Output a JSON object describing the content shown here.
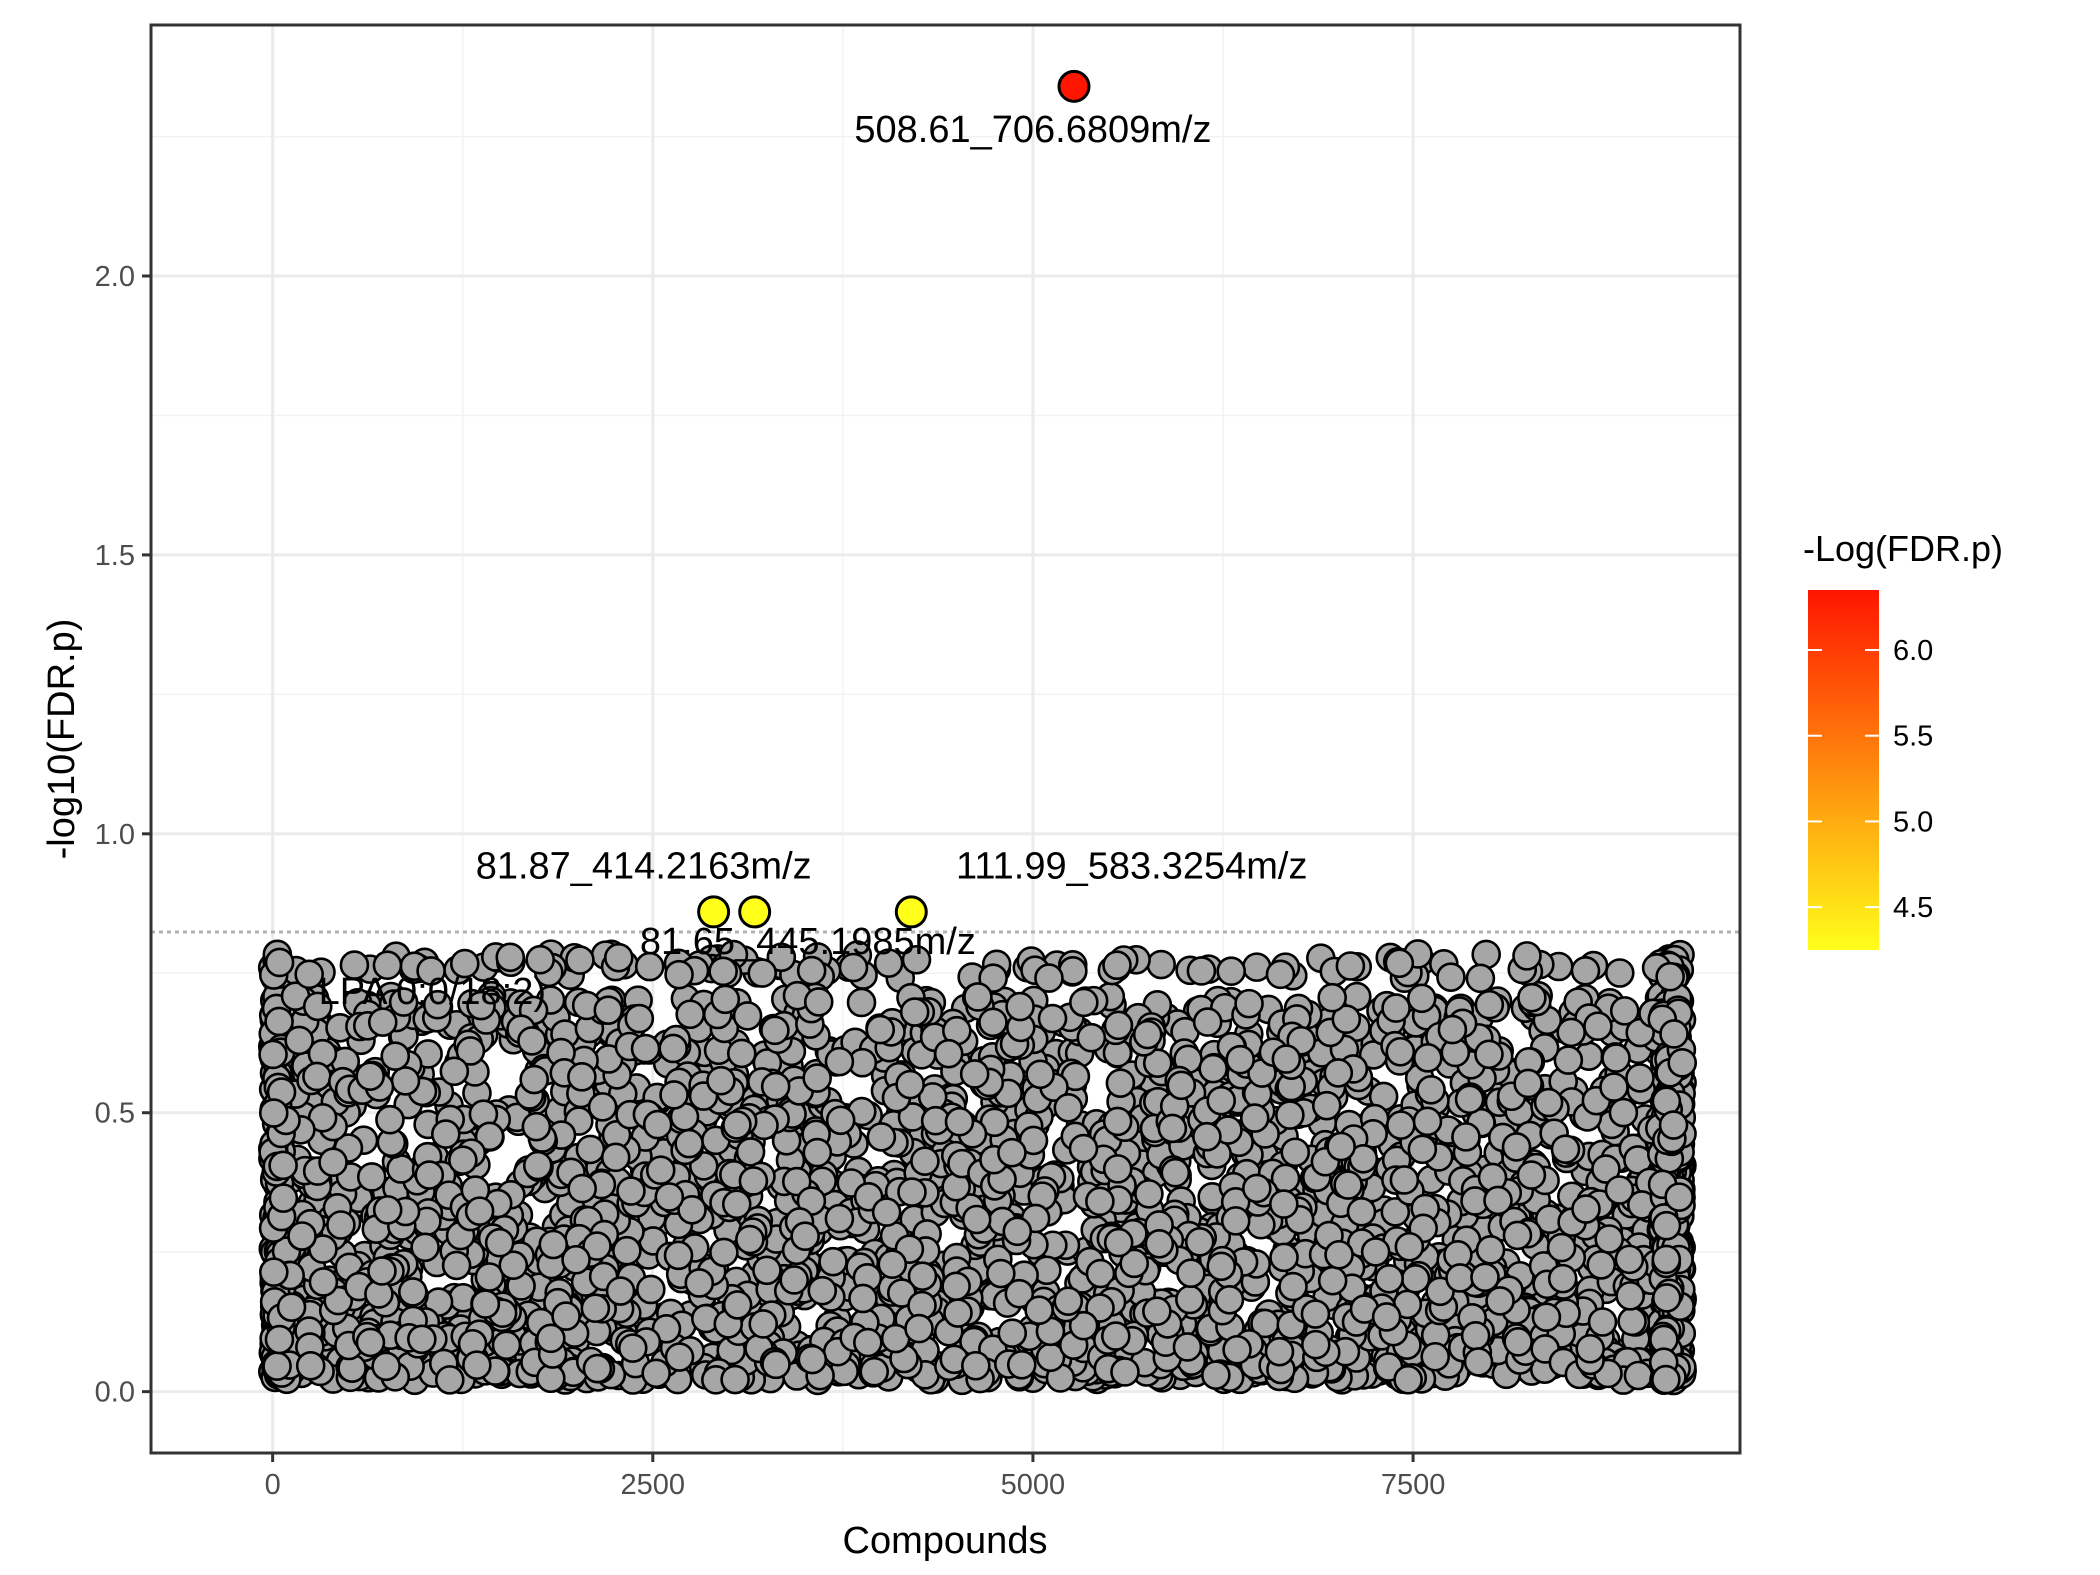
{
  "chart_data": {
    "type": "scatter",
    "xlabel": "Compounds",
    "ylabel": "-log10(FDR.p)",
    "xlim": [
      -800,
      9650
    ],
    "ylim": [
      -0.11,
      2.45
    ],
    "x_ticks": [
      0,
      2500,
      5000,
      7500
    ],
    "x_tick_labels": [
      "0",
      "2500",
      "5000",
      "7500"
    ],
    "y_ticks": [
      0.0,
      0.5,
      1.0,
      1.5,
      2.0
    ],
    "y_tick_labels": [
      "0.0",
      "0.5",
      "1.0",
      "1.5",
      "2.0"
    ],
    "grid": true,
    "threshold_line": 0.824,
    "n_compounds": 9270,
    "background_point_color": "#a6a6a6",
    "point_edge_color": "#000000",
    "highlighted_points": [
      {
        "x": 5270,
        "y": 2.34,
        "color_value": 6.3,
        "color": "#ff1500"
      },
      {
        "x": 2900,
        "y": 0.86,
        "color_value": 4.3,
        "color": "#ffff1a"
      },
      {
        "x": 3170,
        "y": 0.86,
        "color_value": 4.3,
        "color": "#ffff1a"
      },
      {
        "x": 4200,
        "y": 0.86,
        "color_value": 4.3,
        "color": "#ffff1a"
      }
    ],
    "annotations": [
      {
        "text": "508.61_706.6809m/z",
        "x": 5000,
        "y": 2.24
      },
      {
        "text": "81.87_414.2163m/z",
        "x": 2440,
        "y": 0.92
      },
      {
        "text": "111.99_583.3254m/z",
        "x": 5650,
        "y": 0.92
      },
      {
        "text": "81.65_445.1985m/z",
        "x": 3520,
        "y": 0.785
      },
      {
        "text": "LPA 0:0/18:2)",
        "x": 1050,
        "y": 0.695
      }
    ],
    "legend": {
      "title": "-Log(FDR.p)",
      "position": "right",
      "range": [
        4.25,
        6.35
      ],
      "ticks": [
        4.5,
        5.0,
        5.5,
        6.0
      ],
      "tick_labels": [
        "4.5",
        "5.0",
        "5.5",
        "6.0"
      ],
      "gradient_low": "#ffff1a",
      "gradient_high": "#ff1500"
    }
  }
}
